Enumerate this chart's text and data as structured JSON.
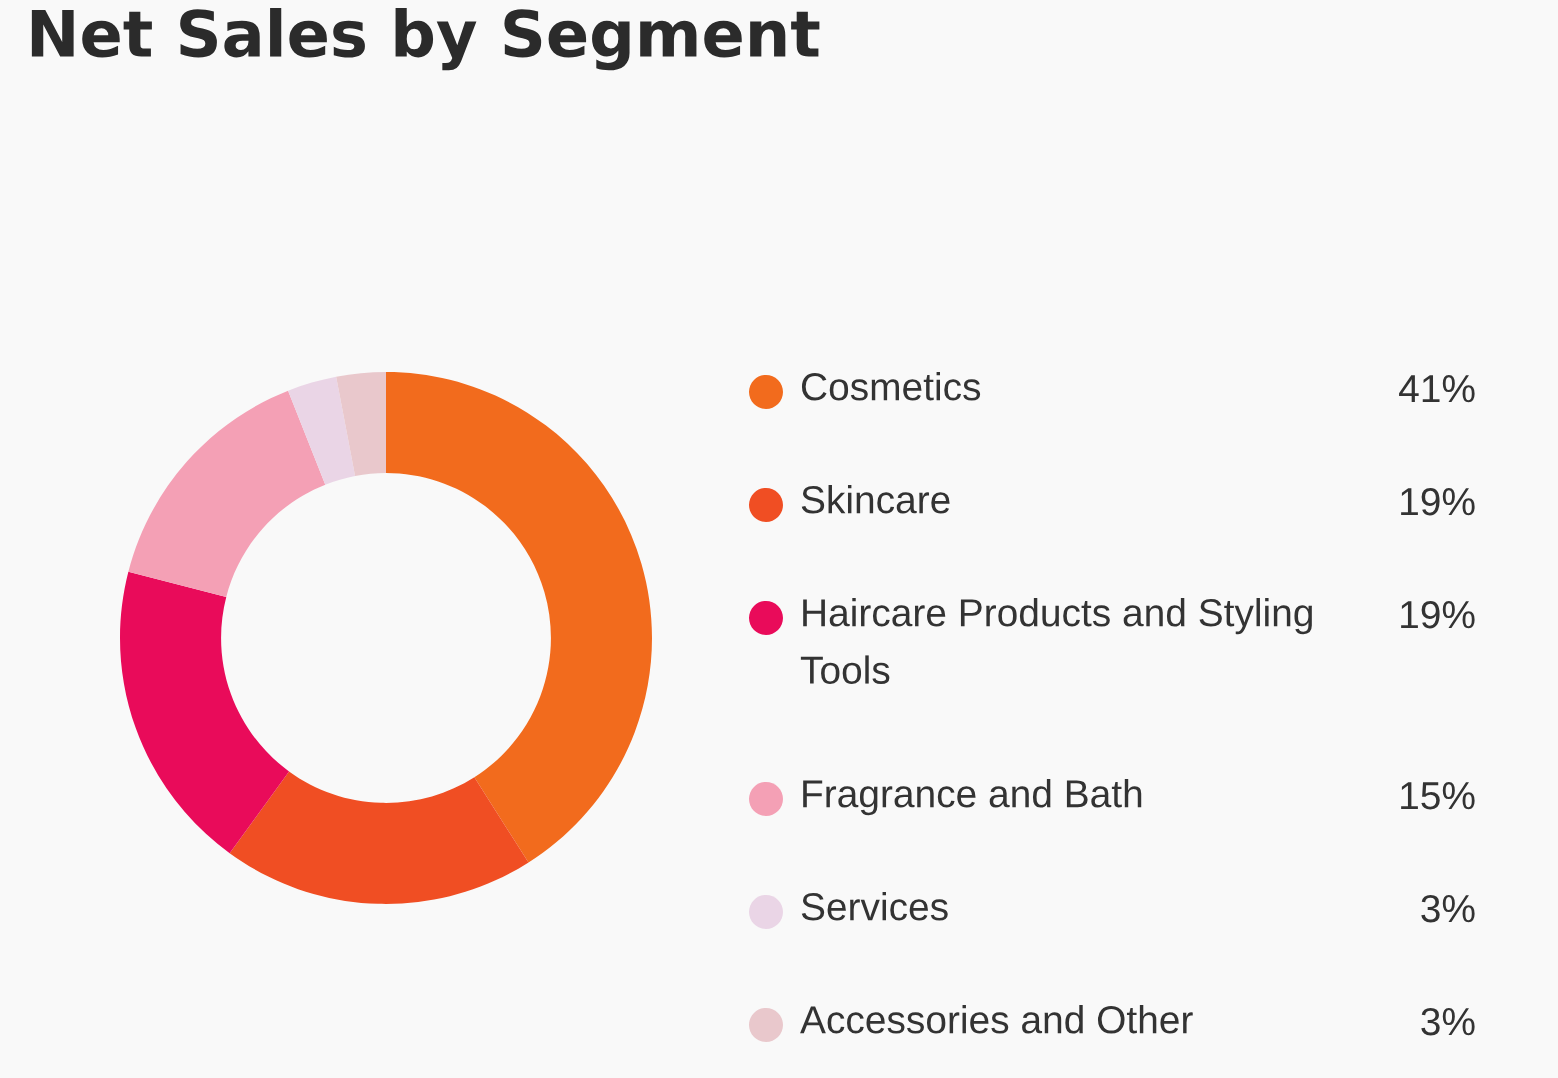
{
  "chart_data": {
    "type": "donut",
    "title": "Net Sales by Segment",
    "categories": [
      "Cosmetics",
      "Skincare",
      "Haircare Products and Styling Tools",
      "Fragrance and Bath",
      "Services",
      "Accessories and Other"
    ],
    "values": [
      41,
      19,
      19,
      15,
      3,
      3
    ],
    "value_labels": [
      "41%",
      "19%",
      "19%",
      "15%",
      "3%",
      "3%"
    ],
    "colors": [
      "#f26b1d",
      "#f04e23",
      "#e90b5a",
      "#f4a0b5",
      "#ead5e6",
      "#e9c8cc"
    ],
    "legend": "right"
  }
}
